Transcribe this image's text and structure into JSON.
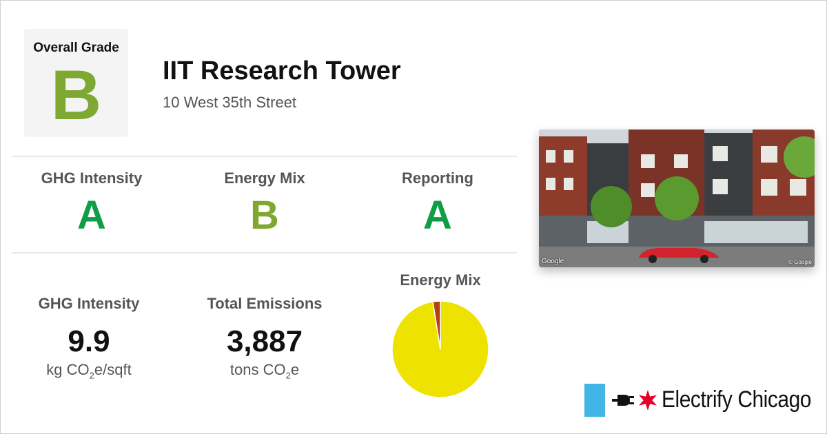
{
  "overall": {
    "label": "Overall Grade",
    "grade": "B"
  },
  "building": {
    "name": "IIT Research Tower",
    "address": "10 West 35th Street"
  },
  "grades": [
    {
      "label": "GHG Intensity",
      "grade": "A",
      "color": "#0f9d46"
    },
    {
      "label": "Energy Mix",
      "grade": "B",
      "color": "#7ea832"
    },
    {
      "label": "Reporting",
      "grade": "A",
      "color": "#0f9d46"
    }
  ],
  "stats": {
    "ghg": {
      "label": "GHG Intensity",
      "value": "9.9",
      "unit_pre": "kg CO",
      "unit_sub": "2",
      "unit_post": "e/sqft"
    },
    "emissions": {
      "label": "Total Emissions",
      "value": "3,887",
      "unit_pre": "tons CO",
      "unit_sub": "2",
      "unit_post": "e"
    }
  },
  "energy_mix": {
    "label": "Energy Mix",
    "slices": [
      {
        "value": 97.5,
        "color": "#eee200"
      },
      {
        "value": 2.5,
        "color": "#b5410f"
      }
    ]
  },
  "photo": {
    "attrib_left": "Google",
    "attrib_right": "© Google"
  },
  "brand": {
    "name": "Electrify Chicago",
    "bar_color": "#41b6e6",
    "star_color": "#e4002b"
  },
  "colors": {
    "grade_b": "#7ea832",
    "grade_a": "#0f9d46"
  }
}
